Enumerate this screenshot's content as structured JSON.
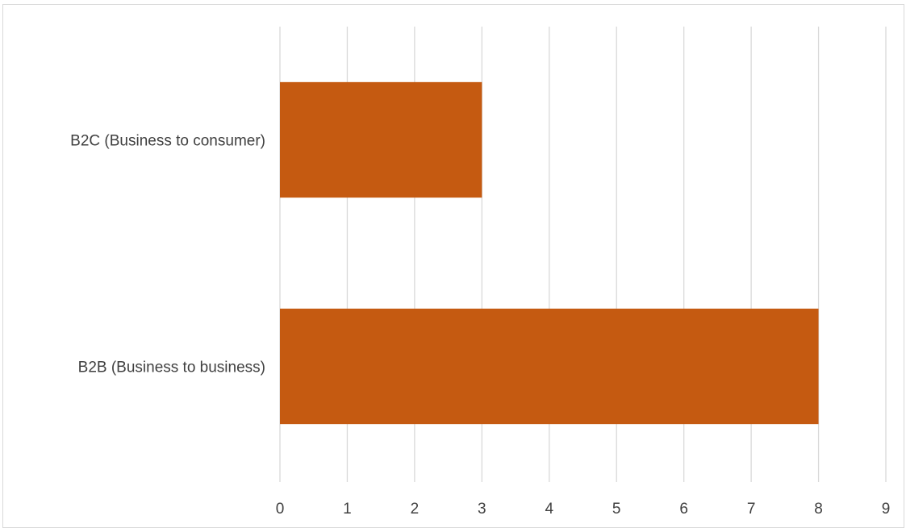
{
  "chart_data": {
    "type": "bar",
    "orientation": "horizontal",
    "categories": [
      "B2C (Business to consumer)",
      "B2B (Business to business)"
    ],
    "values": [
      3,
      8
    ],
    "title": "",
    "xlabel": "",
    "ylabel": "",
    "xlim": [
      0,
      9
    ],
    "x_ticks": [
      "0",
      "1",
      "2",
      "3",
      "4",
      "5",
      "6",
      "7",
      "8",
      "9"
    ],
    "grid": "vertical gridlines",
    "legend": "none",
    "bar_color": "#C55A11",
    "grid_color": "#D9D9D9"
  }
}
